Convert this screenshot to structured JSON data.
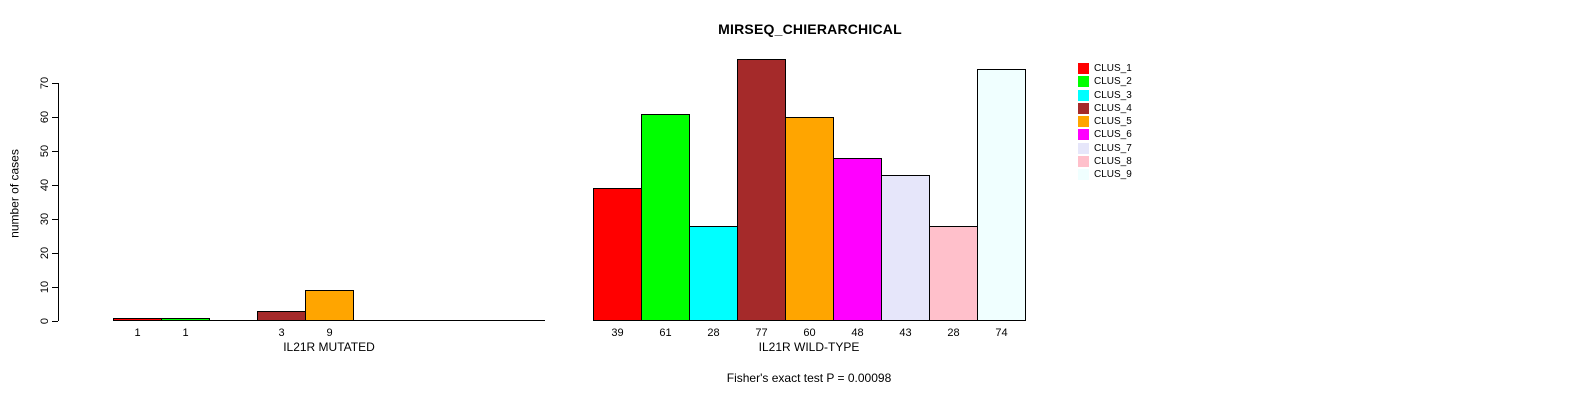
{
  "title": "MIRSEQ_CHIERARCHICAL",
  "y_axis": {
    "label": "number of cases",
    "ticks": [
      0,
      10,
      20,
      30,
      40,
      50,
      60,
      70
    ]
  },
  "legend": {
    "entries": [
      {
        "label": "CLUS_1",
        "color": "#FF0000"
      },
      {
        "label": "CLUS_2",
        "color": "#00FF00"
      },
      {
        "label": "CLUS_3",
        "color": "#00FFFF"
      },
      {
        "label": "CLUS_4",
        "color": "#A52A2A"
      },
      {
        "label": "CLUS_5",
        "color": "#FFA500"
      },
      {
        "label": "CLUS_6",
        "color": "#FF00FF"
      },
      {
        "label": "CLUS_7",
        "color": "#E6E6FA"
      },
      {
        "label": "CLUS_8",
        "color": "#FFC0CB"
      },
      {
        "label": "CLUS_9",
        "color": "#F0FFFF"
      }
    ]
  },
  "chart_data": {
    "type": "bar",
    "title": "MIRSEQ_CHIERARCHICAL",
    "ylabel": "number of cases",
    "ylim": [
      0,
      77
    ],
    "yticks": [
      0,
      10,
      20,
      30,
      40,
      50,
      60,
      70
    ],
    "grid": false,
    "legend_position": "top-right",
    "series_labels": [
      "CLUS_1",
      "CLUS_2",
      "CLUS_3",
      "CLUS_4",
      "CLUS_5",
      "CLUS_6",
      "CLUS_7",
      "CLUS_8",
      "CLUS_9"
    ],
    "colors": [
      "#FF0000",
      "#00FF00",
      "#00FFFF",
      "#A52A2A",
      "#FFA500",
      "#FF00FF",
      "#E6E6FA",
      "#FFC0CB",
      "#F0FFFF"
    ],
    "panels": [
      {
        "xlabel": "IL21R MUTATED",
        "values": [
          1,
          1,
          0,
          3,
          9,
          0,
          0,
          0,
          0
        ],
        "bar_labels": [
          "1",
          "1",
          "",
          "3",
          "9",
          "",
          "",
          "",
          ""
        ]
      },
      {
        "xlabel": "IL21R WILD-TYPE",
        "values": [
          39,
          61,
          28,
          77,
          60,
          48,
          43,
          28,
          74
        ],
        "bar_labels": [
          "39",
          "61",
          "28",
          "77",
          "60",
          "48",
          "43",
          "28",
          "74"
        ]
      }
    ],
    "annotation": "Fisher's exact test P = 0.00098"
  }
}
